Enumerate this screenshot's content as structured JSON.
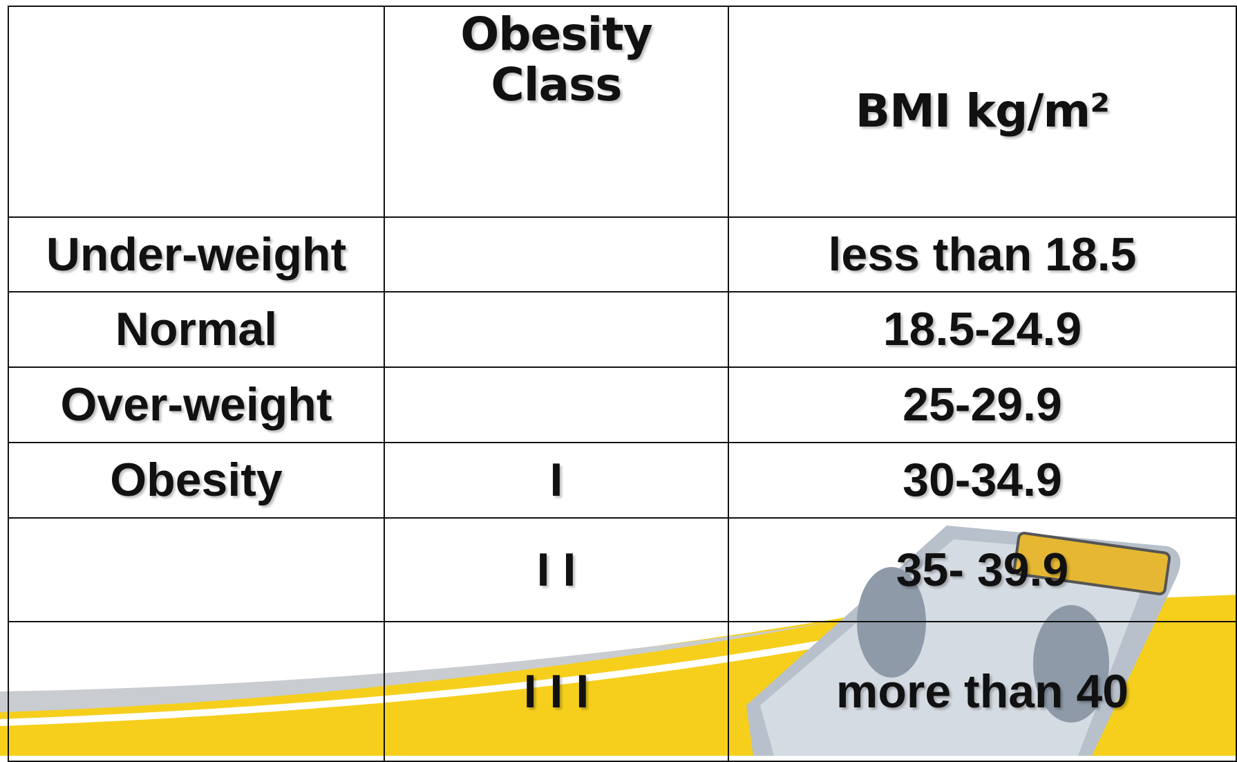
{
  "header": {
    "class": "Obesity Class",
    "bmi": "BMI kg/m²"
  },
  "rows": [
    {
      "label": "Under-weight",
      "bmi": "less than 18.5"
    },
    {
      "label": "Normal",
      "bmi": "18.5-24.9"
    },
    {
      "label": "Over-weight",
      "bmi": "25-29.9"
    },
    {
      "label": "Obesity",
      "class": "I",
      "bmi": "30-34.9"
    },
    {
      "class": "I I",
      "bmi": "35- 39.9"
    },
    {
      "class": "I I I",
      "bmi": "more than 40"
    }
  ]
}
